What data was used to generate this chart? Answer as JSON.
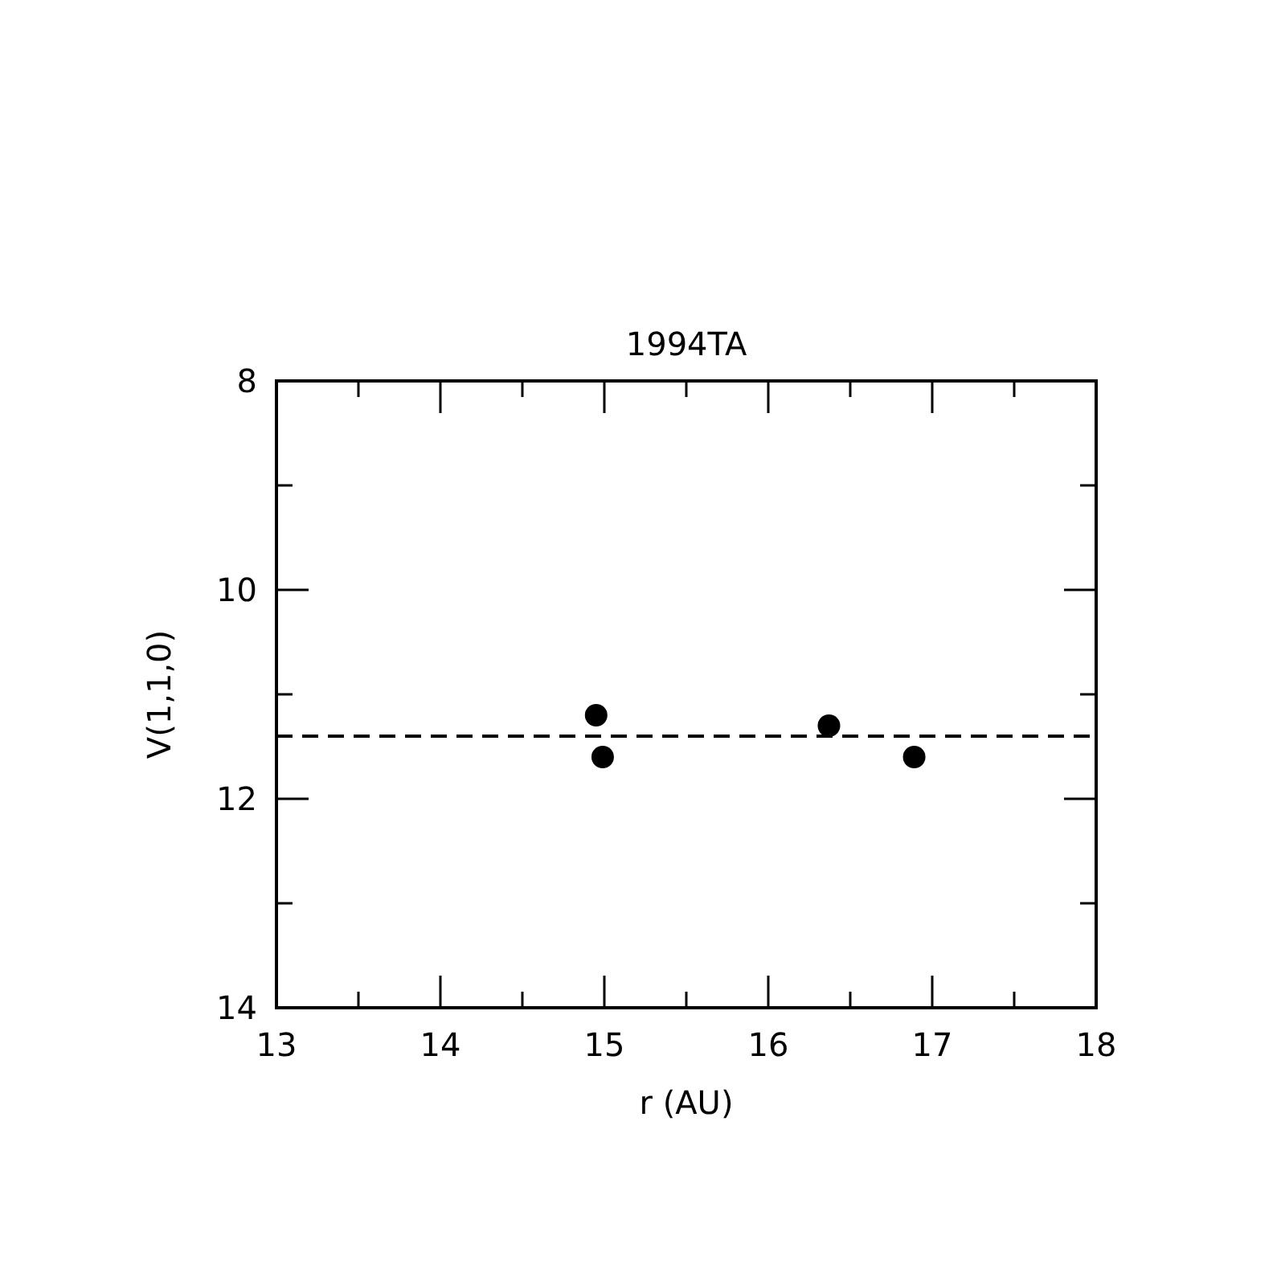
{
  "chart_data": {
    "type": "scatter",
    "title": "1994TA",
    "xlabel": "r (AU)",
    "ylabel": "V(1,1,0)",
    "x": [
      14.95,
      14.99,
      16.37,
      16.89
    ],
    "values": [
      11.2,
      11.6,
      11.3,
      11.6
    ],
    "color": "#000000",
    "marker": "circle",
    "xlim": [
      13,
      18
    ],
    "ylim": [
      14,
      8
    ],
    "xticks": [
      13,
      {
        "value": 13.5,
        "label": null
      },
      14,
      {
        "value": 14.5,
        "label": null
      },
      15,
      {
        "value": 15.5,
        "label": null
      },
      16,
      {
        "value": 16.5,
        "label": null
      },
      17,
      {
        "value": 17.5,
        "label": null
      },
      18
    ],
    "yticks": [
      8,
      {
        "value": 9,
        "label": null
      },
      10,
      {
        "value": 11,
        "label": null
      },
      12,
      {
        "value": 13,
        "label": null
      },
      14
    ],
    "ref_lines": [
      {
        "axis": "y",
        "value": 11.4,
        "line_style": "dashed",
        "color": "#000000"
      }
    ],
    "grid": false
  }
}
